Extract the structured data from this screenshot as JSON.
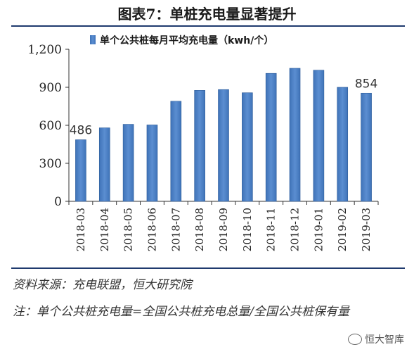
{
  "figure": {
    "title": "图表7：单桩充电量显著提升",
    "source": "资料来源：充电联盟，恒大研究院",
    "note": "注：单个公共桩充电量=全国公共桩充电总量/全国公共桩保有量",
    "watermark": "恒大智库"
  },
  "chart_data": {
    "type": "bar",
    "title": "",
    "legend_position": "top",
    "series": [
      {
        "name": "单个公共桩每月平均充电量（kwh/个）",
        "color": "#5b8ed1",
        "values": [
          486,
          580,
          608,
          603,
          790,
          876,
          882,
          857,
          1010,
          1050,
          1035,
          900,
          854
        ]
      }
    ],
    "categories": [
      "2018-03",
      "2018-04",
      "2018-05",
      "2018-06",
      "2018-07",
      "2018-08",
      "2018-09",
      "2018-10",
      "2018-11",
      "2018-12",
      "2019-01",
      "2019-02",
      "2019-03"
    ],
    "data_labels": [
      {
        "index": 0,
        "text": "486"
      },
      {
        "index": 12,
        "text": "854"
      }
    ],
    "ylim": [
      0,
      1200
    ],
    "yticks": [
      0,
      300,
      600,
      900,
      1200
    ],
    "ytick_labels": [
      "0",
      "300",
      "600",
      "900",
      "1,200"
    ],
    "grid": false,
    "xlabel": "",
    "ylabel": ""
  }
}
